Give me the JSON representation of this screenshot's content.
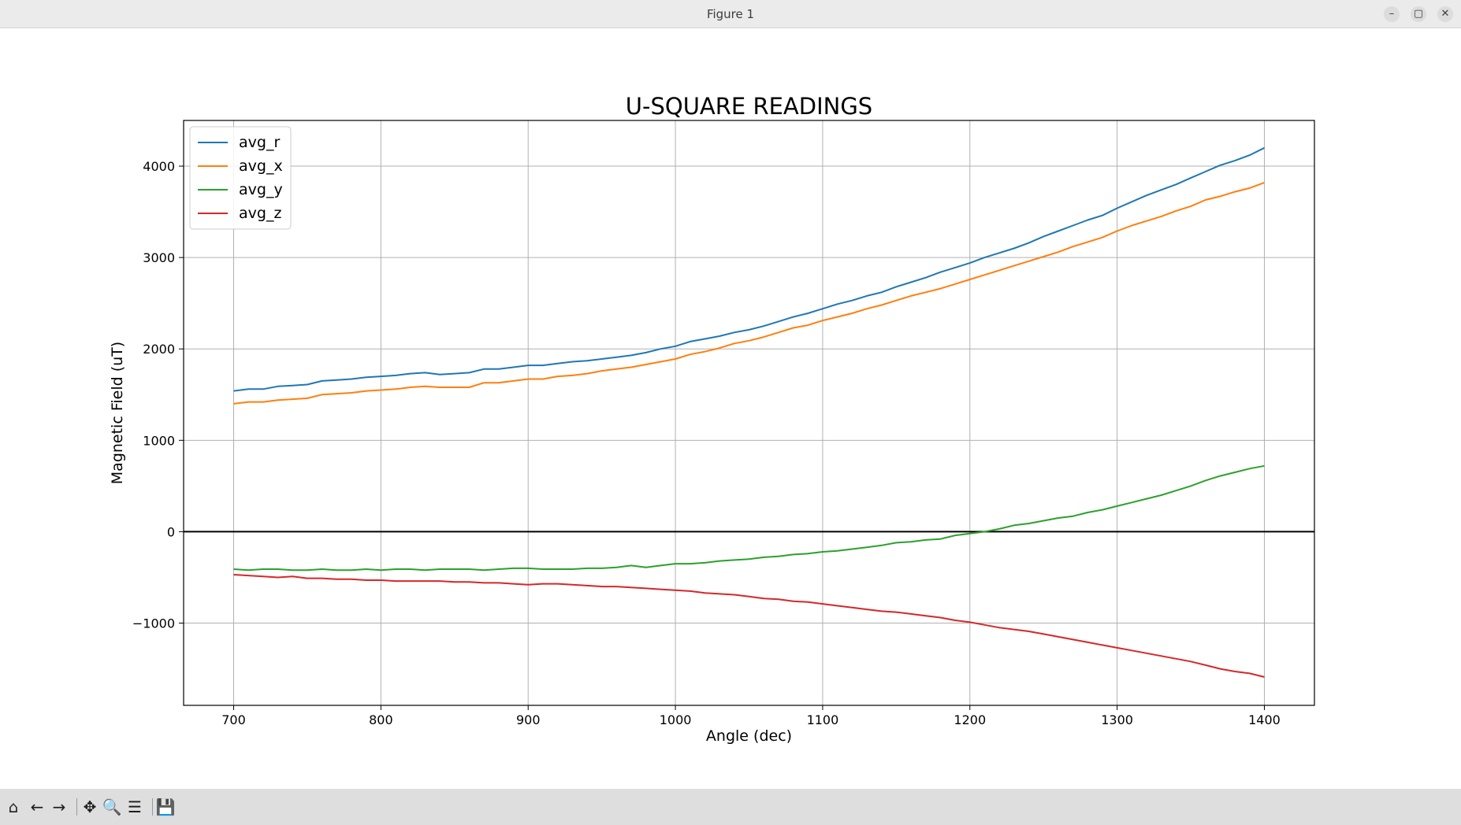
{
  "window": {
    "title": "Figure 1"
  },
  "window_controls": {
    "minimize": "–",
    "maximize": "▢",
    "close": "✕"
  },
  "toolbar": {
    "home": "⌂",
    "back": "←",
    "forward": "→",
    "pan": "✥",
    "zoom": "🔍",
    "configure": "☰",
    "save": "💾"
  },
  "chart_data": {
    "type": "line",
    "title": "U-SQUARE READINGS",
    "xlabel": "Angle (dec)",
    "ylabel": "Magnetic Field (uT)",
    "xlim": [
      666,
      1434
    ],
    "ylim": [
      -1900,
      4500
    ],
    "xticks": [
      700,
      800,
      900,
      1000,
      1100,
      1200,
      1300,
      1400
    ],
    "yticks": [
      -1000,
      0,
      1000,
      2000,
      3000,
      4000
    ],
    "ytick_labels": [
      "−1000",
      "0",
      "1000",
      "2000",
      "3000",
      "4000"
    ],
    "grid": true,
    "zero_line": true,
    "legend_position": "upper-left",
    "x": [
      700,
      710,
      720,
      730,
      740,
      750,
      760,
      770,
      780,
      790,
      800,
      810,
      820,
      830,
      840,
      850,
      860,
      870,
      880,
      890,
      900,
      910,
      920,
      930,
      940,
      950,
      960,
      970,
      980,
      990,
      1000,
      1010,
      1020,
      1030,
      1040,
      1050,
      1060,
      1070,
      1080,
      1090,
      1100,
      1110,
      1120,
      1130,
      1140,
      1150,
      1160,
      1170,
      1180,
      1190,
      1200,
      1210,
      1220,
      1230,
      1240,
      1250,
      1260,
      1270,
      1280,
      1290,
      1300,
      1310,
      1320,
      1330,
      1340,
      1350,
      1360,
      1370,
      1380,
      1390,
      1400
    ],
    "series": [
      {
        "name": "avg_r",
        "color": "#1f77b4",
        "values": [
          1540,
          1560,
          1560,
          1590,
          1600,
          1610,
          1650,
          1660,
          1670,
          1690,
          1700,
          1710,
          1730,
          1740,
          1720,
          1730,
          1740,
          1780,
          1780,
          1800,
          1820,
          1820,
          1840,
          1860,
          1870,
          1890,
          1910,
          1930,
          1960,
          2000,
          2030,
          2080,
          2110,
          2140,
          2180,
          2210,
          2250,
          2300,
          2350,
          2390,
          2440,
          2490,
          2530,
          2580,
          2620,
          2680,
          2730,
          2780,
          2840,
          2890,
          2940,
          3000,
          3050,
          3100,
          3160,
          3230,
          3290,
          3350,
          3410,
          3460,
          3540,
          3610,
          3680,
          3740,
          3800,
          3870,
          3940,
          4010,
          4060,
          4120,
          4200
        ]
      },
      {
        "name": "avg_x",
        "color": "#ff7f0e",
        "values": [
          1400,
          1420,
          1420,
          1440,
          1450,
          1460,
          1500,
          1510,
          1520,
          1540,
          1550,
          1560,
          1580,
          1590,
          1580,
          1580,
          1580,
          1630,
          1630,
          1650,
          1670,
          1670,
          1700,
          1710,
          1730,
          1760,
          1780,
          1800,
          1830,
          1860,
          1890,
          1940,
          1970,
          2010,
          2060,
          2090,
          2130,
          2180,
          2230,
          2260,
          2310,
          2350,
          2390,
          2440,
          2480,
          2530,
          2580,
          2620,
          2660,
          2710,
          2760,
          2810,
          2860,
          2910,
          2960,
          3010,
          3060,
          3120,
          3170,
          3220,
          3290,
          3350,
          3400,
          3450,
          3510,
          3560,
          3630,
          3670,
          3720,
          3760,
          3820
        ]
      },
      {
        "name": "avg_y",
        "color": "#2ca02c",
        "values": [
          -410,
          -420,
          -410,
          -410,
          -420,
          -420,
          -410,
          -420,
          -420,
          -410,
          -420,
          -410,
          -410,
          -420,
          -410,
          -410,
          -410,
          -420,
          -410,
          -400,
          -400,
          -410,
          -410,
          -410,
          -400,
          -400,
          -390,
          -370,
          -390,
          -370,
          -350,
          -350,
          -340,
          -320,
          -310,
          -300,
          -280,
          -270,
          -250,
          -240,
          -220,
          -210,
          -190,
          -170,
          -150,
          -120,
          -110,
          -90,
          -80,
          -40,
          -20,
          0,
          30,
          70,
          90,
          120,
          150,
          170,
          210,
          240,
          280,
          320,
          360,
          400,
          450,
          500,
          560,
          610,
          650,
          690,
          720
        ]
      },
      {
        "name": "avg_z",
        "color": "#d62728",
        "values": [
          -470,
          -480,
          -490,
          -500,
          -490,
          -510,
          -510,
          -520,
          -520,
          -530,
          -530,
          -540,
          -540,
          -540,
          -540,
          -550,
          -550,
          -560,
          -560,
          -570,
          -580,
          -570,
          -570,
          -580,
          -590,
          -600,
          -600,
          -610,
          -620,
          -630,
          -640,
          -650,
          -670,
          -680,
          -690,
          -710,
          -730,
          -740,
          -760,
          -770,
          -790,
          -810,
          -830,
          -850,
          -870,
          -880,
          -900,
          -920,
          -940,
          -970,
          -990,
          -1020,
          -1050,
          -1070,
          -1090,
          -1120,
          -1150,
          -1180,
          -1210,
          -1240,
          -1270,
          -1300,
          -1330,
          -1360,
          -1390,
          -1420,
          -1460,
          -1500,
          -1530,
          -1550,
          -1590
        ]
      }
    ]
  }
}
